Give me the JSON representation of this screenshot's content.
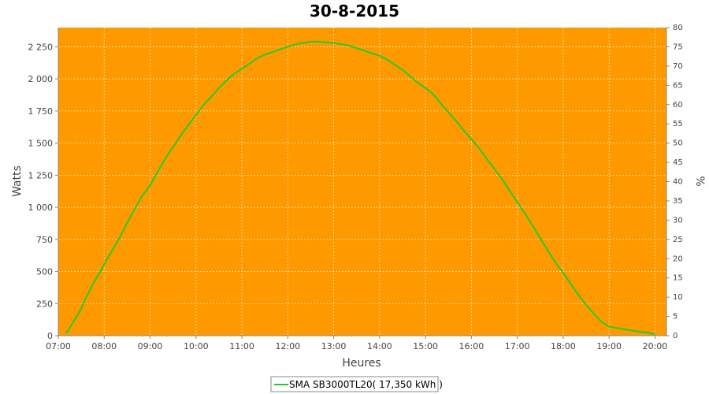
{
  "chart_data": {
    "type": "line",
    "title": "30-8-2015",
    "xlabel": "Heures",
    "ylabel": "Watts",
    "ylabel_right": "%",
    "xlim": [
      7.0,
      20.25
    ],
    "ylim": [
      0,
      2400
    ],
    "ylim_right": [
      0,
      80
    ],
    "x_ticks": [
      {
        "value": 7,
        "label": "07:00"
      },
      {
        "value": 8,
        "label": "08:00"
      },
      {
        "value": 9,
        "label": "09:00"
      },
      {
        "value": 10,
        "label": "10:00"
      },
      {
        "value": 11,
        "label": "11:00"
      },
      {
        "value": 12,
        "label": "12:00"
      },
      {
        "value": 13,
        "label": "13:00"
      },
      {
        "value": 14,
        "label": "14:00"
      },
      {
        "value": 15,
        "label": "15:00"
      },
      {
        "value": 16,
        "label": "16:00"
      },
      {
        "value": 17,
        "label": "17:00"
      },
      {
        "value": 18,
        "label": "18:00"
      },
      {
        "value": 19,
        "label": "19:00"
      },
      {
        "value": 20,
        "label": "20:00"
      }
    ],
    "y_ticks": [
      {
        "value": 0,
        "label": "0"
      },
      {
        "value": 250,
        "label": "250"
      },
      {
        "value": 500,
        "label": "500"
      },
      {
        "value": 750,
        "label": "750"
      },
      {
        "value": 1000,
        "label": "1 000"
      },
      {
        "value": 1250,
        "label": "1 250"
      },
      {
        "value": 1500,
        "label": "1 500"
      },
      {
        "value": 1750,
        "label": "1 750"
      },
      {
        "value": 2000,
        "label": "2 000"
      },
      {
        "value": 2250,
        "label": "2 250"
      }
    ],
    "y_right_ticks": [
      {
        "value": 0,
        "label": "0"
      },
      {
        "value": 5,
        "label": "5"
      },
      {
        "value": 10,
        "label": "10"
      },
      {
        "value": 15,
        "label": "15"
      },
      {
        "value": 20,
        "label": "20"
      },
      {
        "value": 25,
        "label": "25"
      },
      {
        "value": 30,
        "label": "30"
      },
      {
        "value": 35,
        "label": "35"
      },
      {
        "value": 40,
        "label": "40"
      },
      {
        "value": 45,
        "label": "45"
      },
      {
        "value": 50,
        "label": "50"
      },
      {
        "value": 55,
        "label": "55"
      },
      {
        "value": 60,
        "label": "60"
      },
      {
        "value": 65,
        "label": "65"
      },
      {
        "value": 70,
        "label": "70"
      },
      {
        "value": 75,
        "label": "75"
      },
      {
        "value": 80,
        "label": "80"
      }
    ],
    "grid": true,
    "legend_position": "bottom-center",
    "colors": {
      "plot_background": "#ff9900",
      "series_line": "#22cc22",
      "grid": "#ffe4b8",
      "axis": "#888888"
    },
    "series": [
      {
        "name": "SMA SB3000TL20( 17,350 kWh )",
        "x": [
          7.17,
          7.25,
          7.33,
          7.42,
          7.5,
          7.58,
          7.67,
          7.75,
          7.83,
          7.92,
          8.0,
          8.17,
          8.33,
          8.5,
          8.67,
          8.83,
          9.0,
          9.17,
          9.33,
          9.5,
          9.67,
          9.83,
          10.0,
          10.17,
          10.33,
          10.5,
          10.67,
          10.83,
          11.0,
          11.17,
          11.33,
          11.5,
          11.67,
          11.83,
          12.0,
          12.17,
          12.33,
          12.5,
          12.67,
          12.83,
          13.0,
          13.17,
          13.33,
          13.5,
          13.67,
          13.83,
          14.0,
          14.17,
          14.33,
          14.5,
          14.67,
          14.83,
          15.0,
          15.17,
          15.33,
          15.5,
          15.67,
          15.83,
          16.0,
          16.17,
          16.33,
          16.5,
          16.67,
          16.83,
          17.0,
          17.17,
          17.33,
          17.5,
          17.67,
          17.83,
          18.0,
          18.17,
          18.33,
          18.5,
          18.67,
          18.83,
          19.0,
          19.17,
          19.33,
          19.5,
          19.67,
          19.83,
          20.0
        ],
        "values": [
          20,
          60,
          110,
          160,
          210,
          280,
          340,
          400,
          450,
          500,
          560,
          660,
          760,
          880,
          990,
          1090,
          1170,
          1280,
          1380,
          1470,
          1560,
          1640,
          1720,
          1800,
          1860,
          1930,
          1990,
          2040,
          2080,
          2120,
          2160,
          2190,
          2210,
          2230,
          2250,
          2270,
          2280,
          2290,
          2290,
          2285,
          2280,
          2270,
          2260,
          2240,
          2220,
          2200,
          2180,
          2150,
          2110,
          2070,
          2020,
          1970,
          1930,
          1880,
          1810,
          1740,
          1670,
          1600,
          1530,
          1460,
          1380,
          1300,
          1220,
          1130,
          1040,
          950,
          860,
          760,
          660,
          570,
          490,
          400,
          320,
          240,
          170,
          110,
          70,
          60,
          50,
          40,
          30,
          25,
          10
        ]
      }
    ]
  }
}
